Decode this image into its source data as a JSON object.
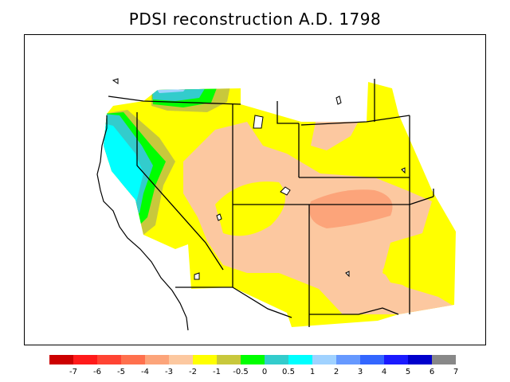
{
  "title": "PDSI reconstruction A.D. 1798",
  "legend": {
    "colors": [
      "#cc0000",
      "#ff1a1a",
      "#ff4433",
      "#ff704d",
      "#fca47a",
      "#fcc8a0",
      "#ffff00",
      "#c8c83c",
      "#00ff00",
      "#33cccc",
      "#00ffff",
      "#a0d2ff",
      "#6699ff",
      "#3366ff",
      "#1a1aff",
      "#0000cc",
      "#888888"
    ],
    "labels": [
      "-7",
      "-6",
      "-5",
      "-4",
      "-3",
      "-2",
      "-1",
      "-0.5",
      "0",
      "0.5",
      "1",
      "2",
      "3",
      "4",
      "5",
      "6",
      "7"
    ]
  }
}
